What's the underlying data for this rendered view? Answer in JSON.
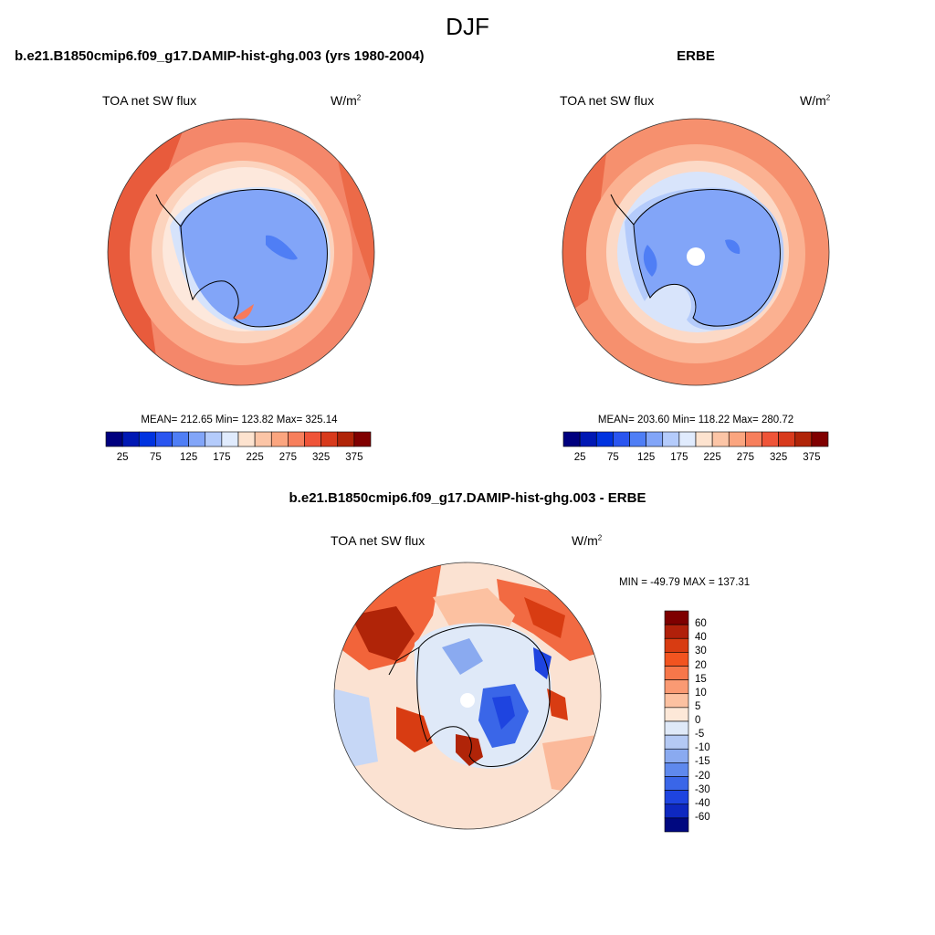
{
  "figure": {
    "season": "DJF",
    "panels": [
      {
        "case_title": "b.e21.B1850cmip6.f09_g17.DAMIP-hist-ghg.003 (yrs 1980-2004)",
        "variable": "TOA net SW flux",
        "unit_base": "W/m",
        "unit_sup": "2",
        "stats_text": "MEAN= 212.65  Min= 123.82  Max= 325.14",
        "mean": 212.65,
        "min": 123.82,
        "max": 325.14
      },
      {
        "case_title": "ERBE",
        "variable": "TOA net SW flux",
        "unit_base": "W/m",
        "unit_sup": "2",
        "stats_text": "MEAN= 203.60  Min= 118.22  Max= 280.72",
        "mean": 203.6,
        "min": 118.22,
        "max": 280.72
      },
      {
        "case_title": "b.e21.B1850cmip6.f09_g17.DAMIP-hist-ghg.003 - ERBE",
        "variable": "TOA net SW flux",
        "unit_base": "W/m",
        "unit_sup": "2",
        "stats_text": "MIN = -49.79 MAX = 137.31",
        "min": -49.79,
        "max": 137.31
      }
    ],
    "abs_colorbar": {
      "colors": [
        "#00007f",
        "#0018b4",
        "#0033e0",
        "#2a55f0",
        "#4f7ef5",
        "#82a5f8",
        "#b4cbfb",
        "#e0ebfd",
        "#fde3cf",
        "#fcc5a6",
        "#fba57f",
        "#f77f5c",
        "#ef5438",
        "#d83a1c",
        "#b02408",
        "#800000"
      ],
      "tick_labels": [
        "25",
        "75",
        "125",
        "175",
        "225",
        "275",
        "325",
        "375"
      ]
    },
    "diff_colorbar": {
      "colors": [
        "#7e0000",
        "#b0200a",
        "#d83c12",
        "#f25420",
        "#f7774a",
        "#fa9a73",
        "#fcc1a1",
        "#fde8d8",
        "#dfe9f8",
        "#b4c9f4",
        "#8aaaf0",
        "#5f89ed",
        "#3a66e8",
        "#1e44e0",
        "#0e28c0",
        "#000880"
      ],
      "tick_labels": [
        "60",
        "40",
        "30",
        "20",
        "15",
        "10",
        "5",
        "0",
        "-5",
        "-10",
        "-15",
        "-20",
        "-30",
        "-40",
        "-60"
      ]
    }
  }
}
